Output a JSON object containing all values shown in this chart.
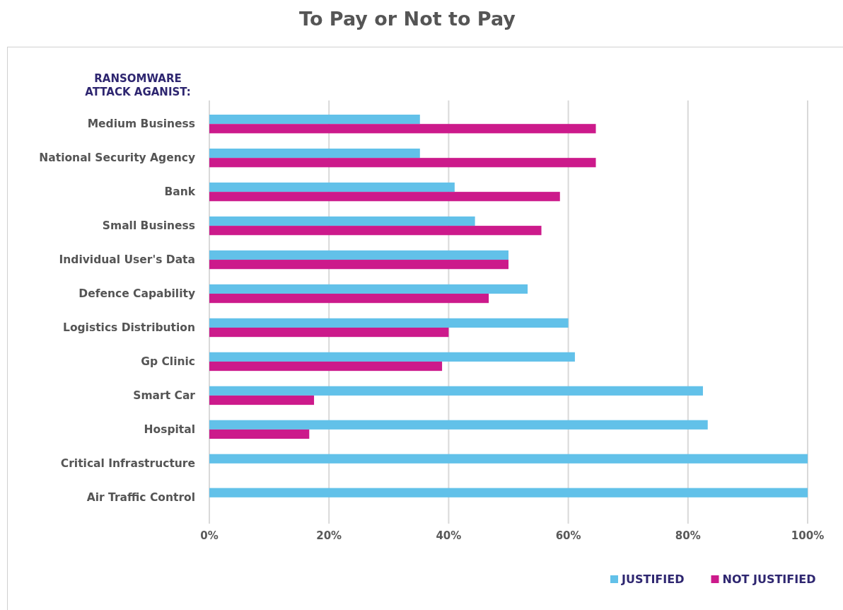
{
  "chart_data": {
    "type": "bar",
    "orientation": "horizontal",
    "title": "To Pay or Not to Pay",
    "ylabel": "RANSOMWARE ATTACK AGANIST:",
    "categories": [
      "Medium Business",
      "National Security Agency",
      "Bank",
      "Small Business",
      "Individual User's Data",
      "Defence Capability",
      "Logistics Distribution",
      "Gp Clinic",
      "Smart Car",
      "Hospital",
      "Critical Infrastructure",
      "Air Traffic Control"
    ],
    "series": [
      {
        "name": "JUSTIFIED",
        "color": "#62c1e9",
        "values": [
          35.2,
          35.2,
          41,
          44.4,
          50,
          53.2,
          60,
          61.1,
          82.5,
          83.3,
          100,
          100
        ]
      },
      {
        "name": "NOT JUSTIFIED",
        "color": "#cc1a8b",
        "values": [
          64.6,
          64.6,
          58.6,
          55.5,
          50,
          46.7,
          40,
          38.9,
          17.5,
          16.7,
          0,
          0
        ]
      }
    ],
    "xlim": [
      0,
      100
    ],
    "xticks": [
      {
        "value": 0,
        "label": "0%"
      },
      {
        "value": 20,
        "label": "20%"
      },
      {
        "value": 40,
        "label": "40%"
      },
      {
        "value": 60,
        "label": "60%"
      },
      {
        "value": 80,
        "label": "80%"
      },
      {
        "value": 100,
        "label": "100%"
      }
    ],
    "grid": "x",
    "legend": "bottom right"
  }
}
